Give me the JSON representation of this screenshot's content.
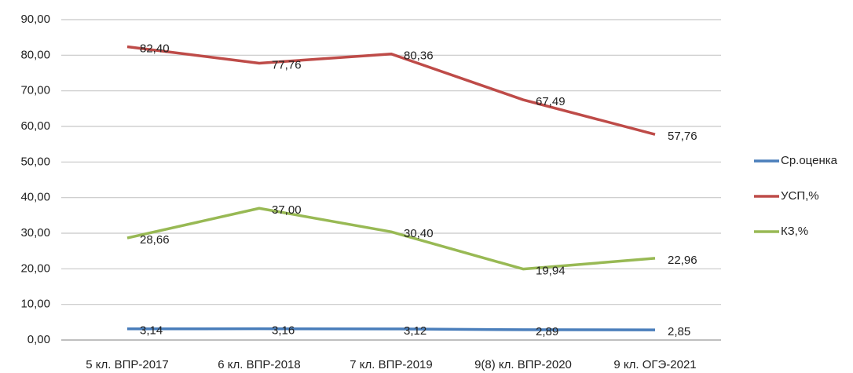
{
  "chart_data": {
    "type": "line",
    "categories": [
      "5 кл. ВПР-2017",
      "6 кл. ВПР-2018",
      "7 кл. ВПР-2019",
      "9(8) кл. ВПР-2020",
      "9 кл. ОГЭ-2021"
    ],
    "series": [
      {
        "name": "Ср.оценка",
        "color": "#4a7ebb",
        "values": [
          3.14,
          3.16,
          3.12,
          2.89,
          2.85
        ],
        "value_labels": [
          "3,14",
          "3,16",
          "3,12",
          "2,89",
          "2,85"
        ]
      },
      {
        "name": "УСП,%",
        "color": "#be4b48",
        "values": [
          82.4,
          77.76,
          80.36,
          67.49,
          57.76
        ],
        "value_labels": [
          "82,40",
          "77,76",
          "80,36",
          "67,49",
          "57,76"
        ]
      },
      {
        "name": "КЗ,%",
        "color": "#98b954",
        "values": [
          28.66,
          37,
          30.4,
          19.94,
          22.96
        ],
        "value_labels": [
          "28,66",
          "37,00",
          "30,40",
          "19,94",
          "22,96"
        ]
      }
    ],
    "ylim": [
      0,
      90
    ],
    "yticks": [
      {
        "value": 0,
        "label": "0,00"
      },
      {
        "value": 10,
        "label": "10,00"
      },
      {
        "value": 20,
        "label": "20,00"
      },
      {
        "value": 30,
        "label": "30,00"
      },
      {
        "value": 40,
        "label": "40,00"
      },
      {
        "value": 50,
        "label": "50,00"
      },
      {
        "value": 60,
        "label": "60,00"
      },
      {
        "value": 70,
        "label": "70,00"
      },
      {
        "value": 80,
        "label": "80,00"
      },
      {
        "value": 90,
        "label": "90,00"
      }
    ],
    "grid": true,
    "legend": "right"
  }
}
